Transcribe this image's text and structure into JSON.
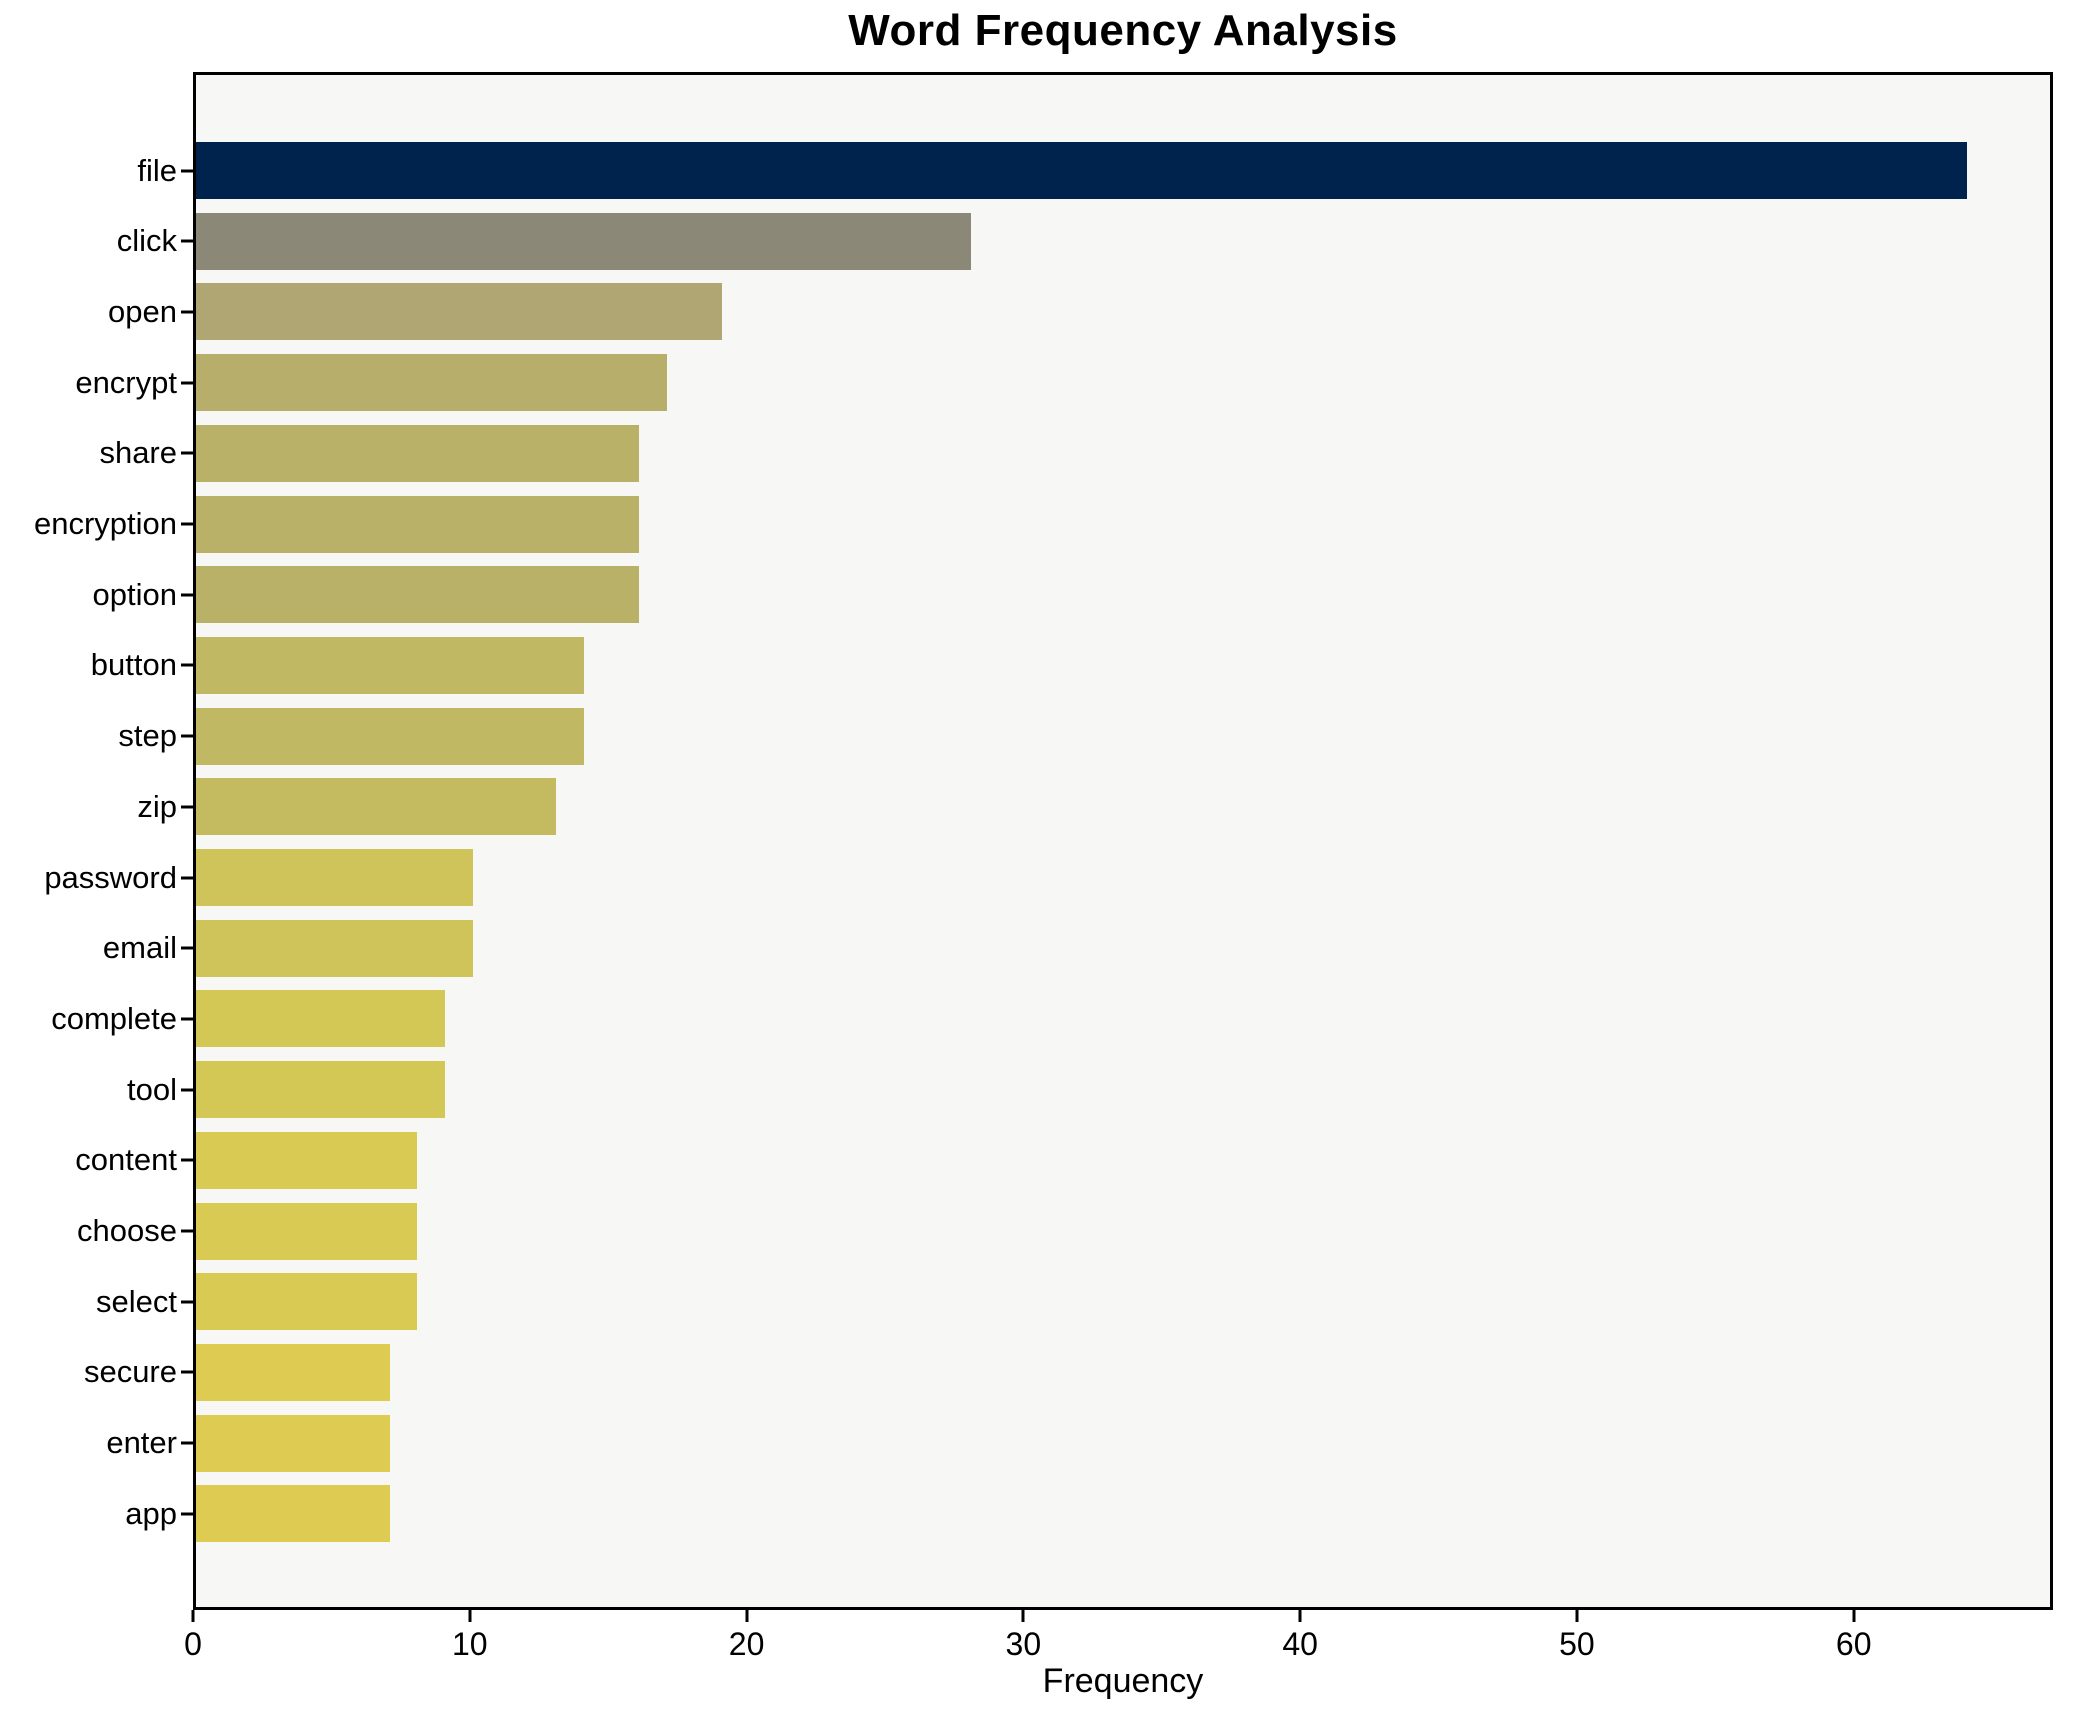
{
  "title": "Word Frequency Analysis",
  "chart_data": {
    "type": "bar",
    "orientation": "horizontal",
    "title": "Word Frequency Analysis",
    "xlabel": "Frequency",
    "ylabel": "",
    "categories": [
      "file",
      "click",
      "open",
      "encrypt",
      "share",
      "encryption",
      "option",
      "button",
      "step",
      "zip",
      "password",
      "email",
      "complete",
      "tool",
      "content",
      "choose",
      "select",
      "secure",
      "enter",
      "app"
    ],
    "values": [
      64,
      28,
      19,
      17,
      16,
      16,
      16,
      14,
      14,
      13,
      10,
      10,
      9,
      9,
      8,
      8,
      8,
      7,
      7,
      7
    ],
    "bar_colors": [
      "#00234e",
      "#8b8878",
      "#afa673",
      "#b7ae6b",
      "#bab168",
      "#bab168",
      "#bab168",
      "#c1b863",
      "#c1b863",
      "#c4bb61",
      "#cfc459",
      "#cfc459",
      "#d3c756",
      "#d3c756",
      "#d8ca53",
      "#d8ca53",
      "#d8ca53",
      "#ddcc51",
      "#ddcc51",
      "#ddcc51"
    ],
    "xticks": [
      0,
      10,
      20,
      30,
      40,
      50,
      60
    ],
    "xlim": [
      0,
      67.2
    ],
    "grid": false,
    "legend": null,
    "plot_background": "#f7f7f6",
    "page_background": "#ffffff",
    "spine_color": "#000000"
  }
}
